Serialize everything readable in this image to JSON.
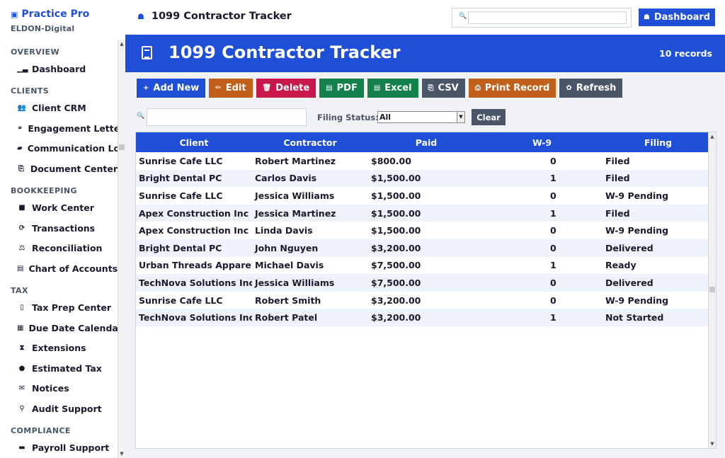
{
  "app": {
    "name": "Practice Pro",
    "org": "ELDON-Digital",
    "page_title": "1099 Contractor Tracker"
  },
  "search": {
    "placeholder": ""
  },
  "header": {
    "dashboard_label": "Dashboard"
  },
  "sidebar": {
    "sections": [
      {
        "title": "OVERVIEW",
        "items": [
          {
            "label": "Dashboard",
            "icon": "bar-chart-icon"
          }
        ]
      },
      {
        "title": "CLIENTS",
        "items": [
          {
            "label": "Client CRM",
            "icon": "users-icon"
          },
          {
            "label": "Engagement Letters",
            "icon": "handshake-icon"
          },
          {
            "label": "Communication Log",
            "icon": "chat-icon"
          },
          {
            "label": "Document Center",
            "icon": "paperclip-icon"
          }
        ]
      },
      {
        "title": "BOOKKEEPING",
        "items": [
          {
            "label": "Work Center",
            "icon": "stop-icon"
          },
          {
            "label": "Transactions",
            "icon": "refresh-icon"
          },
          {
            "label": "Reconciliation",
            "icon": "scale-icon"
          },
          {
            "label": "Chart of Accounts",
            "icon": "ledger-icon"
          }
        ]
      },
      {
        "title": "TAX",
        "items": [
          {
            "label": "Tax Prep Center",
            "icon": "clipboard-icon"
          },
          {
            "label": "Due Date Calendar",
            "icon": "calendar-icon"
          },
          {
            "label": "Extensions",
            "icon": "hourglass-icon"
          },
          {
            "label": "Estimated Tax",
            "icon": "moneybag-icon"
          },
          {
            "label": "Notices",
            "icon": "envelope-icon"
          },
          {
            "label": "Audit Support",
            "icon": "magnifier-icon"
          }
        ]
      },
      {
        "title": "COMPLIANCE",
        "items": [
          {
            "label": "Payroll Support",
            "icon": "briefcase-icon"
          }
        ]
      }
    ]
  },
  "banner": {
    "title": "1099 Contractor Tracker",
    "record_count": "10 records"
  },
  "toolbar": {
    "buttons": [
      {
        "label": "Add New",
        "glyph": "+",
        "color": "#1e4fd6",
        "icon": "plus-icon"
      },
      {
        "label": "Edit",
        "glyph": "✏",
        "color": "#c0601a",
        "icon": "pencil-icon"
      },
      {
        "label": "Delete",
        "glyph": "🗑",
        "color": "#c8174a",
        "icon": "trash-icon"
      },
      {
        "label": "PDF",
        "glyph": "▤",
        "color": "#13814b",
        "icon": "pdf-icon"
      },
      {
        "label": "Excel",
        "glyph": "▤",
        "color": "#13814b",
        "icon": "spreadsheet-icon"
      },
      {
        "label": "CSV",
        "glyph": "⎘",
        "color": "#4a5568",
        "icon": "csv-icon"
      },
      {
        "label": "Print Record",
        "glyph": "⎙",
        "color": "#c0601a",
        "icon": "printer-icon"
      },
      {
        "label": "Refresh",
        "glyph": "✿",
        "color": "#4a5568",
        "icon": "refresh-icon"
      }
    ]
  },
  "filter": {
    "search_value": "",
    "status_label": "Filing Status:",
    "status_value": "All",
    "clear_label": "Clear"
  },
  "table": {
    "columns": [
      "Client",
      "Contractor",
      "Paid",
      "W-9",
      "Filing"
    ],
    "rows": [
      [
        "Sunrise Cafe LLC",
        "Robert Martinez",
        "$800.00",
        "0",
        "Filed"
      ],
      [
        "Bright Dental PC",
        "Carlos Davis",
        "$1,500.00",
        "1",
        "Filed"
      ],
      [
        "Sunrise Cafe LLC",
        "Jessica Williams",
        "$1,500.00",
        "0",
        "W-9 Pending"
      ],
      [
        "Apex Construction Inc",
        "Jessica Martinez",
        "$1,500.00",
        "1",
        "Filed"
      ],
      [
        "Apex Construction Inc",
        "Linda Davis",
        "$1,500.00",
        "0",
        "W-9 Pending"
      ],
      [
        "Bright Dental PC",
        "John Nguyen",
        "$3,200.00",
        "0",
        "Delivered"
      ],
      [
        "Urban Threads Apparel",
        "Michael Davis",
        "$7,500.00",
        "1",
        "Ready"
      ],
      [
        "TechNova Solutions Inc",
        "Jessica Williams",
        "$7,500.00",
        "0",
        "Delivered"
      ],
      [
        "Sunrise Cafe LLC",
        "Robert Smith",
        "$3,200.00",
        "0",
        "W-9 Pending"
      ],
      [
        "TechNova Solutions Inc",
        "Robert Patel",
        "$3,200.00",
        "1",
        "Not Started"
      ]
    ]
  },
  "colors": {
    "primary": "#1e4fd6",
    "row_alt": "#eef3fb",
    "muted": "#4a5568"
  }
}
